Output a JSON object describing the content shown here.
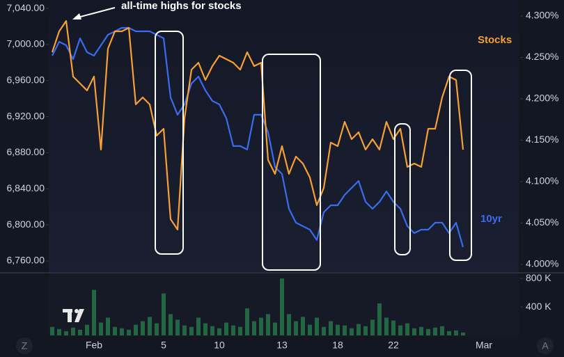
{
  "chart_data": {
    "type": "line",
    "annotation": "all-time highs for stocks",
    "categories": [
      null,
      null,
      null,
      null,
      null,
      null,
      "Feb",
      null,
      null,
      null,
      null,
      null,
      null,
      null,
      null,
      null,
      "5",
      null,
      null,
      null,
      null,
      null,
      null,
      null,
      "10",
      null,
      null,
      null,
      null,
      null,
      null,
      null,
      null,
      "13",
      null,
      null,
      null,
      null,
      null,
      null,
      null,
      "18",
      null,
      null,
      null,
      null,
      null,
      null,
      null,
      "22",
      null,
      null,
      null,
      null,
      null,
      null,
      null,
      null,
      null,
      null,
      null,
      null,
      "Mar"
    ],
    "series": [
      {
        "name": "Stocks",
        "color": "#f7a035",
        "values": [
          6991.4,
          7014.6,
          7026.1,
          6964.4,
          6956.7,
          6949.0,
          6964.4,
          6883.4,
          6995.3,
          7014.6,
          7014.6,
          7018.4,
          6933.6,
          6941.3,
          6933.6,
          6898.9,
          6906.6,
          6806.3,
          6794.8,
          6918.2,
          6972.1,
          6979.8,
          6960.6,
          6976.0,
          6987.6,
          6983.7,
          6979.8,
          6972.1,
          6991.4,
          6976.0,
          6979.8,
          6871.9,
          6856.5,
          6887.3,
          6856.5,
          6875.7,
          6868.0,
          6852.6,
          6821.8,
          6841.0,
          6891.2,
          6887.3,
          6914.3,
          6895.0,
          6902.7,
          6883.4,
          6895.0,
          6883.4,
          6914.3,
          6895.0,
          6906.6,
          6864.2,
          6868.0,
          6864.2,
          6906.6,
          6906.6,
          6941.3,
          6964.4,
          6960.6,
          6883.4,
          null,
          null,
          null
        ]
      },
      {
        "name": "10yr",
        "color": "#3a6cf0",
        "axis": "y2",
        "values": [
          4.2521,
          4.2689,
          4.2647,
          4.2479,
          4.2731,
          4.2563,
          4.2521,
          4.2647,
          4.2773,
          4.2815,
          4.2857,
          4.2857,
          4.2815,
          4.2815,
          4.2815,
          4.2773,
          4.2731,
          4.2017,
          4.1807,
          4.1933,
          4.2185,
          4.2269,
          4.2101,
          4.1975,
          4.1933,
          4.1765,
          4.1429,
          4.1429,
          4.1387,
          4.1807,
          4.1807,
          4.1597,
          4.1176,
          4.1092,
          4.0672,
          4.0504,
          4.0462,
          4.042,
          4.0294,
          4.063,
          4.0714,
          4.0714,
          4.084,
          4.0924,
          4.1008,
          4.0756,
          4.0672,
          4.0756,
          4.0882,
          4.0756,
          4.0672,
          4.0462,
          4.0378,
          4.042,
          4.042,
          4.0504,
          4.0504,
          4.0378,
          4.0504,
          4.021,
          null,
          null,
          null
        ]
      }
    ],
    "ylim": [
      6748.4,
      7049.3
    ],
    "yticks": [
      {
        "value": 7040,
        "label": "7,040.00"
      },
      {
        "value": 7000,
        "label": "7,000.00"
      },
      {
        "value": 6960,
        "label": "6,960.00"
      },
      {
        "value": 6920,
        "label": "6,920.00"
      },
      {
        "value": 6880,
        "label": "6,880.00"
      },
      {
        "value": 6840,
        "label": "6,840.00"
      },
      {
        "value": 6800,
        "label": "6,800.00"
      },
      {
        "value": 6760,
        "label": "6,760.00"
      }
    ],
    "y2lim": [
      3.9916,
      4.3193
    ],
    "y2ticks": [
      {
        "value": 4.3,
        "label": "4.300%"
      },
      {
        "value": 4.25,
        "label": "4.250%"
      },
      {
        "value": 4.2,
        "label": "4.200%"
      },
      {
        "value": 4.15,
        "label": "4.150%"
      },
      {
        "value": 4.1,
        "label": "4.100%"
      },
      {
        "value": 4.05,
        "label": "4.050%"
      },
      {
        "value": 4.0,
        "label": "4.000%"
      }
    ],
    "grid": false,
    "volume": {
      "color": "#2ea55a",
      "ylim": [
        0,
        870000
      ],
      "yticks": [
        {
          "value": 800000,
          "label": "800 K"
        },
        {
          "value": 400000,
          "label": "400 K"
        }
      ],
      "values": [
        120000,
        90000,
        60000,
        110000,
        80000,
        150000,
        640000,
        180000,
        250000,
        120000,
        100000,
        80000,
        150000,
        200000,
        260000,
        170000,
        590000,
        300000,
        220000,
        140000,
        120000,
        250000,
        170000,
        130000,
        100000,
        180000,
        140000,
        120000,
        380000,
        200000,
        250000,
        300000,
        180000,
        800000,
        300000,
        200000,
        260000,
        150000,
        250000,
        120000,
        200000,
        150000,
        140000,
        100000,
        160000,
        130000,
        220000,
        450000,
        250000,
        210000,
        140000,
        170000,
        100000,
        120000,
        90000,
        110000,
        130000,
        60000,
        70000,
        40000,
        null,
        null,
        null
      ]
    }
  },
  "ui": {
    "left_button": "Z",
    "right_button": "A"
  }
}
